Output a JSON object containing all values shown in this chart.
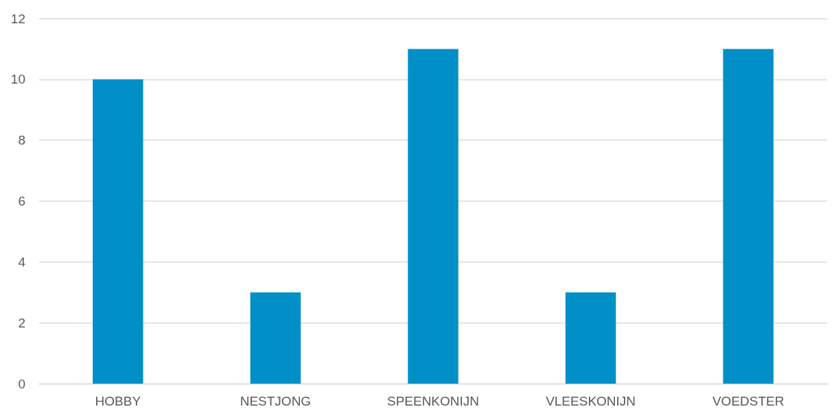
{
  "chart_data": {
    "type": "bar",
    "categories": [
      "HOBBY",
      "NESTJONG",
      "SPEENKONIJN",
      "VLEESKONIJN",
      "VOEDSTER"
    ],
    "values": [
      10,
      3,
      11,
      3,
      11
    ],
    "color": "#008fc6",
    "ylim": [
      0,
      12
    ],
    "yticks": [
      0,
      2,
      4,
      6,
      8,
      10,
      12
    ],
    "grid": "y"
  }
}
